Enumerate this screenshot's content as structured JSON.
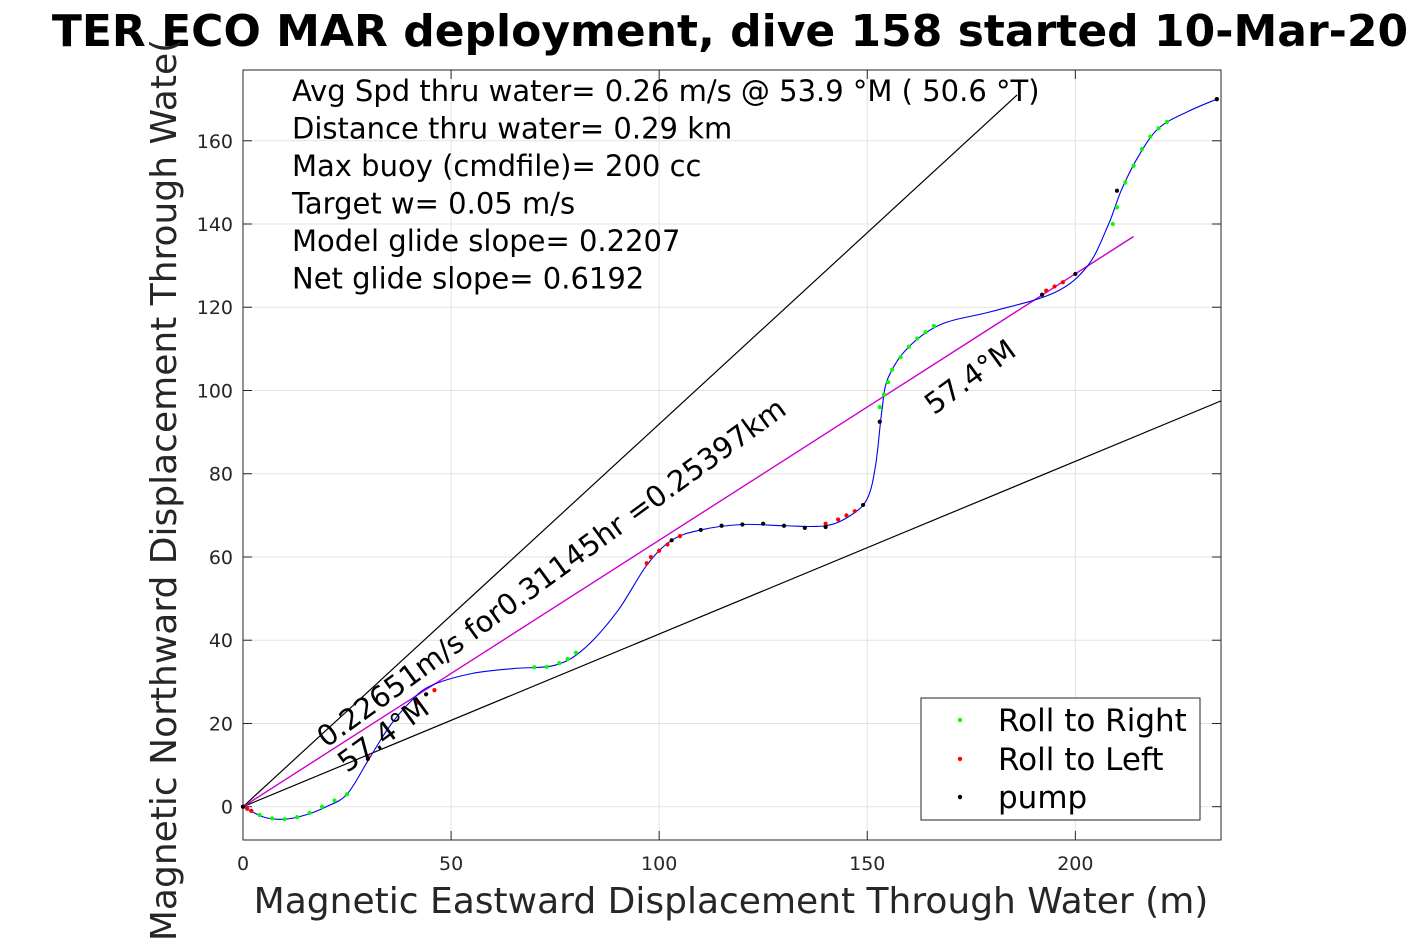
{
  "chart_data": {
    "type": "line",
    "title": "TER ECO MAR deployment, dive 158 started 10-Mar-20",
    "xlabel": "Magnetic Eastward Displacement Through Water (m)",
    "ylabel": "Magnetic Northward Displacement Through Wate(",
    "xlim": [
      0,
      235
    ],
    "ylim": [
      -8,
      177
    ],
    "xticks": [
      0,
      50,
      100,
      150,
      200
    ],
    "yticks": [
      0,
      20,
      40,
      60,
      80,
      100,
      120,
      140,
      160
    ],
    "grid": true,
    "legend_position": "bottom-right",
    "info_lines": [
      "Avg Spd thru water=  0.26 m/s @  53.9 °M ( 50.6 °T)",
      "Distance thru water=  0.29 km",
      "Max buoy (cmdfile)= 200 cc",
      "Target w= 0.05 m/s",
      "Model glide slope= 0.2207",
      "Net glide slope= 0.6192"
    ],
    "annotations": [
      {
        "text": "0.22651m/s for0.31145hr =0.25397km",
        "x": 20,
        "y": 14,
        "rotation": -36
      },
      {
        "text": "57.4°M",
        "x": 25,
        "y": 8,
        "rotation": -36
      },
      {
        "text": "57.4°M",
        "x": 166,
        "y": 94,
        "rotation": -36
      }
    ],
    "series": [
      {
        "name": "Roll to Right",
        "color": "#00ff00",
        "marker": "dot",
        "points": [
          [
            4,
            -2
          ],
          [
            7,
            -2.8
          ],
          [
            10,
            -3
          ],
          [
            13,
            -2.5
          ],
          [
            16,
            -1.5
          ],
          [
            19,
            0
          ],
          [
            22,
            1.5
          ],
          [
            25,
            3
          ],
          [
            70,
            33.5
          ],
          [
            73,
            33.6
          ],
          [
            76,
            34.5
          ],
          [
            78,
            35.5
          ],
          [
            80,
            37
          ],
          [
            153,
            96
          ],
          [
            154,
            99
          ],
          [
            155,
            102
          ],
          [
            156,
            105
          ],
          [
            158,
            108
          ],
          [
            160,
            110.5
          ],
          [
            162,
            112.5
          ],
          [
            164,
            114
          ],
          [
            166,
            115.5
          ],
          [
            209,
            140
          ],
          [
            210,
            144
          ],
          [
            212,
            150
          ],
          [
            214,
            154
          ],
          [
            216,
            158
          ],
          [
            218,
            161
          ],
          [
            220,
            163
          ],
          [
            222,
            164.5
          ]
        ]
      },
      {
        "name": "Roll to Left",
        "color": "#ff0000",
        "marker": "dot",
        "points": [
          [
            0,
            0
          ],
          [
            1,
            -0.5
          ],
          [
            2,
            -1
          ],
          [
            30,
            12
          ],
          [
            42,
            25
          ],
          [
            44,
            27
          ],
          [
            46,
            28
          ],
          [
            97,
            58.5
          ],
          [
            98,
            60
          ],
          [
            100,
            61.5
          ],
          [
            102,
            63
          ],
          [
            105,
            65
          ],
          [
            140,
            68
          ],
          [
            143,
            69
          ],
          [
            145,
            70
          ],
          [
            147,
            71
          ],
          [
            193,
            124
          ],
          [
            195,
            125
          ],
          [
            197,
            126
          ],
          [
            234,
            170
          ]
        ]
      },
      {
        "name": "pump",
        "color": "#000000",
        "marker": "dot",
        "points": [
          [
            0,
            0
          ],
          [
            30,
            11.5
          ],
          [
            44,
            27
          ],
          [
            103,
            64
          ],
          [
            110,
            66.5
          ],
          [
            115,
            67.5
          ],
          [
            120,
            67.8
          ],
          [
            125,
            68
          ],
          [
            130,
            67.5
          ],
          [
            135,
            67
          ],
          [
            140,
            67.2
          ],
          [
            149,
            72.5
          ],
          [
            153,
            92.5
          ],
          [
            192,
            123
          ],
          [
            200,
            128
          ],
          [
            210,
            148
          ],
          [
            234,
            170
          ]
        ]
      }
    ],
    "blue_path": [
      [
        0,
        0
      ],
      [
        5,
        -2.5
      ],
      [
        10,
        -3
      ],
      [
        15,
        -2
      ],
      [
        20,
        0
      ],
      [
        25,
        3
      ],
      [
        30,
        11
      ],
      [
        35,
        19
      ],
      [
        40,
        25
      ],
      [
        45,
        29
      ],
      [
        55,
        32
      ],
      [
        65,
        33.2
      ],
      [
        75,
        34
      ],
      [
        82,
        38
      ],
      [
        90,
        47
      ],
      [
        97,
        58
      ],
      [
        103,
        64
      ],
      [
        110,
        66.5
      ],
      [
        120,
        67.8
      ],
      [
        130,
        67.5
      ],
      [
        140,
        67.5
      ],
      [
        146,
        70
      ],
      [
        150,
        74
      ],
      [
        152,
        82
      ],
      [
        153.5,
        95
      ],
      [
        155,
        103
      ],
      [
        160,
        110.5
      ],
      [
        168,
        116
      ],
      [
        180,
        119
      ],
      [
        195,
        123.5
      ],
      [
        203,
        130
      ],
      [
        208,
        140
      ],
      [
        211,
        148
      ],
      [
        215,
        156
      ],
      [
        220,
        163
      ],
      [
        227,
        167
      ],
      [
        234,
        170
      ]
    ],
    "magenta_line": [
      [
        0,
        0
      ],
      [
        214,
        137
      ]
    ],
    "black_lines": [
      [
        [
          0,
          0
        ],
        [
          186,
          171
        ]
      ],
      [
        [
          0,
          0
        ],
        [
          235,
          97.5
        ]
      ]
    ]
  }
}
